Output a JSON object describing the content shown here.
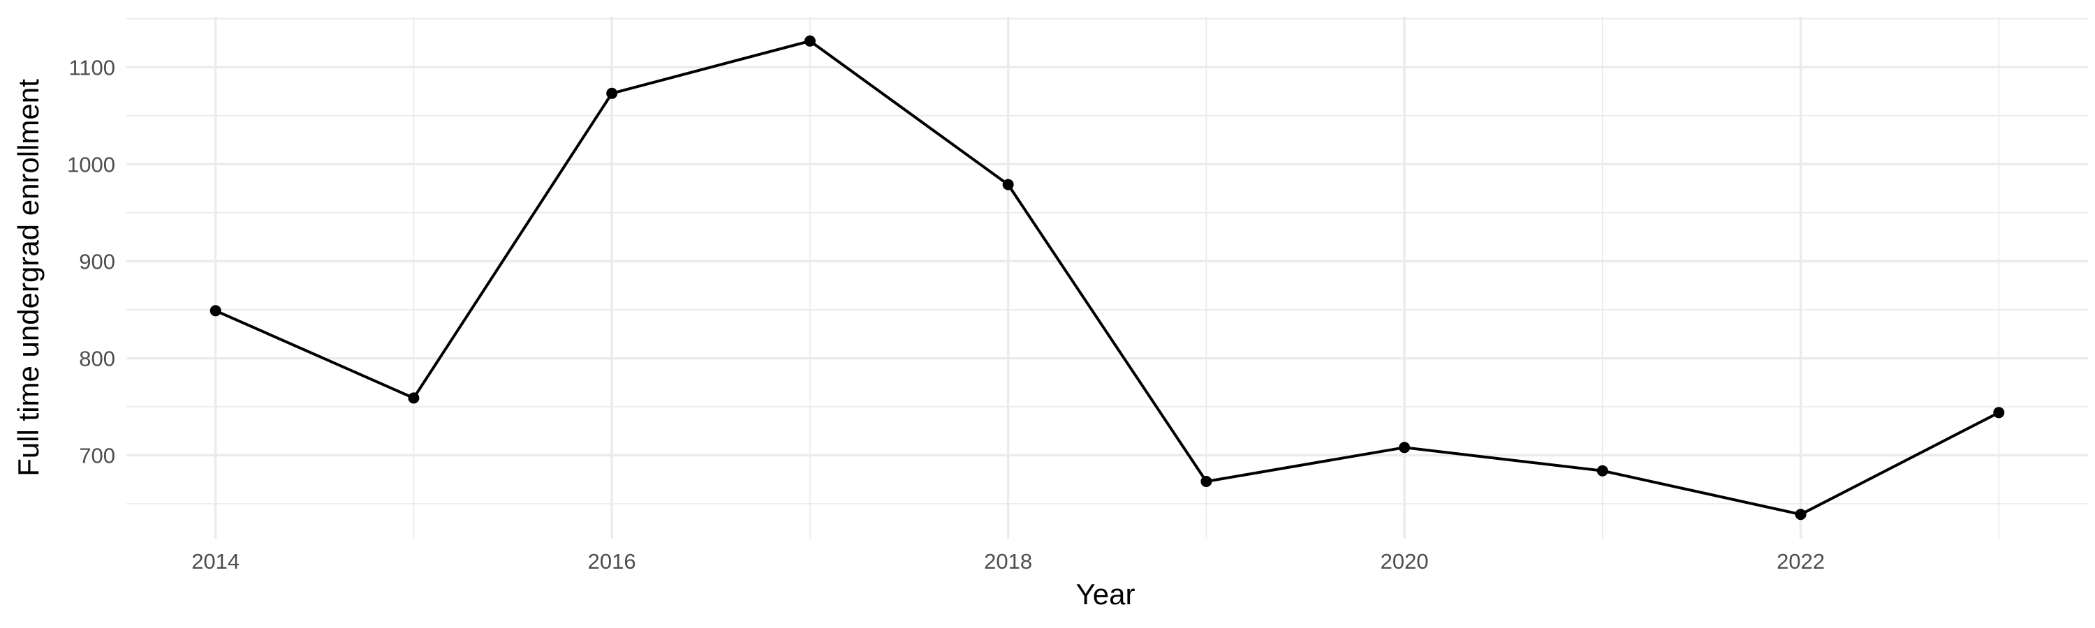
{
  "chart_data": {
    "type": "line",
    "title": "",
    "xlabel": "Year",
    "ylabel": "Full time undergrad enrollment",
    "x": [
      2014,
      2015,
      2016,
      2017,
      2018,
      2019,
      2020,
      2021,
      2022,
      2023
    ],
    "series": [
      {
        "values": [
          849,
          759,
          1073,
          1127,
          979,
          673,
          708,
          684,
          639,
          744
        ]
      }
    ],
    "xlim": [
      2013.55,
      2023.45
    ],
    "ylim": [
      614,
      1152
    ],
    "x_ticks": [
      2014,
      2016,
      2018,
      2020,
      2022
    ],
    "x_tick_labels": [
      "2014",
      "2016",
      "2018",
      "2020",
      "2022"
    ],
    "y_ticks": [
      700,
      800,
      900,
      1000,
      1100
    ],
    "y_tick_labels": [
      "700",
      "800",
      "900",
      "1000",
      "1100"
    ],
    "grid": true,
    "legend": "none",
    "colors": {
      "line": "#000000",
      "grid": "#ebebeb",
      "tick_text": "#4d4d4d",
      "background": "#ffffff"
    }
  }
}
